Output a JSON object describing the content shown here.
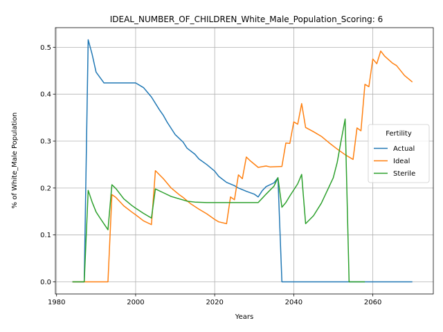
{
  "chart_data": {
    "type": "line",
    "title": "IDEAL_NUMBER_OF_CHILDREN_White_Male_Population_Scoring: 6",
    "xlabel": "Years",
    "ylabel": "% of White_Male Population",
    "xlim": [
      1979.7,
      2075.3
    ],
    "ylim": [
      -0.0258,
      0.5418
    ],
    "xticks": [
      1980,
      2000,
      2020,
      2040,
      2060
    ],
    "xtick_labels": [
      "1980",
      "2000",
      "2020",
      "2040",
      "2060"
    ],
    "yticks": [
      0.0,
      0.1,
      0.2,
      0.3,
      0.4,
      0.5
    ],
    "ytick_labels": [
      "0.0",
      "0.1",
      "0.2",
      "0.3",
      "0.4",
      "0.5"
    ],
    "grid": true,
    "legend": {
      "title": "Fertility",
      "position": "center-right"
    },
    "series": [
      {
        "name": "Actual",
        "color": "#1f77b4",
        "points": [
          [
            1984,
            0.0
          ],
          [
            1987,
            0.0
          ],
          [
            1988,
            0.516
          ],
          [
            1989,
            0.485
          ],
          [
            1990,
            0.447
          ],
          [
            1992,
            0.424
          ],
          [
            1994,
            0.424
          ],
          [
            1996,
            0.424
          ],
          [
            1998,
            0.424
          ],
          [
            2000,
            0.424
          ],
          [
            2002,
            0.414
          ],
          [
            2004,
            0.394
          ],
          [
            2006,
            0.367
          ],
          [
            2007,
            0.355
          ],
          [
            2008,
            0.34
          ],
          [
            2010,
            0.314
          ],
          [
            2012,
            0.298
          ],
          [
            2013,
            0.285
          ],
          [
            2015,
            0.272
          ],
          [
            2016,
            0.262
          ],
          [
            2018,
            0.25
          ],
          [
            2020,
            0.236
          ],
          [
            2021,
            0.225
          ],
          [
            2023,
            0.212
          ],
          [
            2025,
            0.205
          ],
          [
            2026,
            0.2
          ],
          [
            2028,
            0.193
          ],
          [
            2030,
            0.187
          ],
          [
            2031,
            0.181
          ],
          [
            2032,
            0.194
          ],
          [
            2033,
            0.203
          ],
          [
            2035,
            0.211
          ],
          [
            2036,
            0.222
          ],
          [
            2037,
            0.0
          ],
          [
            2040,
            0.0
          ],
          [
            2050,
            0.0
          ],
          [
            2060,
            0.0
          ],
          [
            2070,
            0.0
          ]
        ]
      },
      {
        "name": "Ideal",
        "color": "#ff7f0e",
        "points": [
          [
            1984,
            0.0
          ],
          [
            1988,
            0.0
          ],
          [
            1990,
            0.0
          ],
          [
            1993,
            0.0
          ],
          [
            1994,
            0.186
          ],
          [
            1995,
            0.18
          ],
          [
            1997,
            0.162
          ],
          [
            1999,
            0.149
          ],
          [
            2000,
            0.143
          ],
          [
            2002,
            0.13
          ],
          [
            2004,
            0.122
          ],
          [
            2005,
            0.237
          ],
          [
            2007,
            0.22
          ],
          [
            2009,
            0.2
          ],
          [
            2011,
            0.186
          ],
          [
            2012,
            0.18
          ],
          [
            2014,
            0.166
          ],
          [
            2016,
            0.155
          ],
          [
            2018,
            0.145
          ],
          [
            2020,
            0.133
          ],
          [
            2021,
            0.128
          ],
          [
            2023,
            0.124
          ],
          [
            2024,
            0.181
          ],
          [
            2025,
            0.175
          ],
          [
            2026,
            0.228
          ],
          [
            2027,
            0.22
          ],
          [
            2028,
            0.266
          ],
          [
            2029,
            0.258
          ],
          [
            2031,
            0.244
          ],
          [
            2033,
            0.247
          ],
          [
            2034,
            0.245
          ],
          [
            2037,
            0.246
          ],
          [
            2038,
            0.296
          ],
          [
            2039,
            0.295
          ],
          [
            2040,
            0.341
          ],
          [
            2041,
            0.336
          ],
          [
            2042,
            0.38
          ],
          [
            2043,
            0.329
          ],
          [
            2045,
            0.32
          ],
          [
            2047,
            0.31
          ],
          [
            2049,
            0.296
          ],
          [
            2051,
            0.283
          ],
          [
            2053,
            0.271
          ],
          [
            2055,
            0.261
          ],
          [
            2056,
            0.328
          ],
          [
            2057,
            0.322
          ],
          [
            2058,
            0.421
          ],
          [
            2059,
            0.416
          ],
          [
            2060,
            0.475
          ],
          [
            2061,
            0.465
          ],
          [
            2062,
            0.492
          ],
          [
            2063,
            0.481
          ],
          [
            2065,
            0.466
          ],
          [
            2066,
            0.461
          ],
          [
            2068,
            0.44
          ],
          [
            2070,
            0.426
          ]
        ]
      },
      {
        "name": "Sterile",
        "color": "#2ca02c",
        "points": [
          [
            1984,
            0.0
          ],
          [
            1987,
            0.0
          ],
          [
            1988,
            0.195
          ],
          [
            1989,
            0.17
          ],
          [
            1990,
            0.149
          ],
          [
            1991,
            0.136
          ],
          [
            1993,
            0.111
          ],
          [
            1994,
            0.207
          ],
          [
            1995,
            0.199
          ],
          [
            1997,
            0.177
          ],
          [
            1999,
            0.163
          ],
          [
            2000,
            0.157
          ],
          [
            2002,
            0.146
          ],
          [
            2004,
            0.136
          ],
          [
            2005,
            0.198
          ],
          [
            2007,
            0.19
          ],
          [
            2009,
            0.182
          ],
          [
            2011,
            0.177
          ],
          [
            2013,
            0.172
          ],
          [
            2015,
            0.17
          ],
          [
            2018,
            0.169
          ],
          [
            2020,
            0.169
          ],
          [
            2025,
            0.169
          ],
          [
            2031,
            0.169
          ],
          [
            2033,
            0.187
          ],
          [
            2035,
            0.204
          ],
          [
            2036,
            0.222
          ],
          [
            2037,
            0.159
          ],
          [
            2038,
            0.169
          ],
          [
            2039,
            0.183
          ],
          [
            2041,
            0.209
          ],
          [
            2042,
            0.229
          ],
          [
            2043,
            0.124
          ],
          [
            2045,
            0.141
          ],
          [
            2047,
            0.168
          ],
          [
            2050,
            0.222
          ],
          [
            2051,
            0.255
          ],
          [
            2052,
            0.302
          ],
          [
            2053,
            0.347
          ],
          [
            2054,
            0.0
          ],
          [
            2056,
            0.0
          ],
          [
            2058,
            0.0
          ]
        ]
      }
    ]
  }
}
